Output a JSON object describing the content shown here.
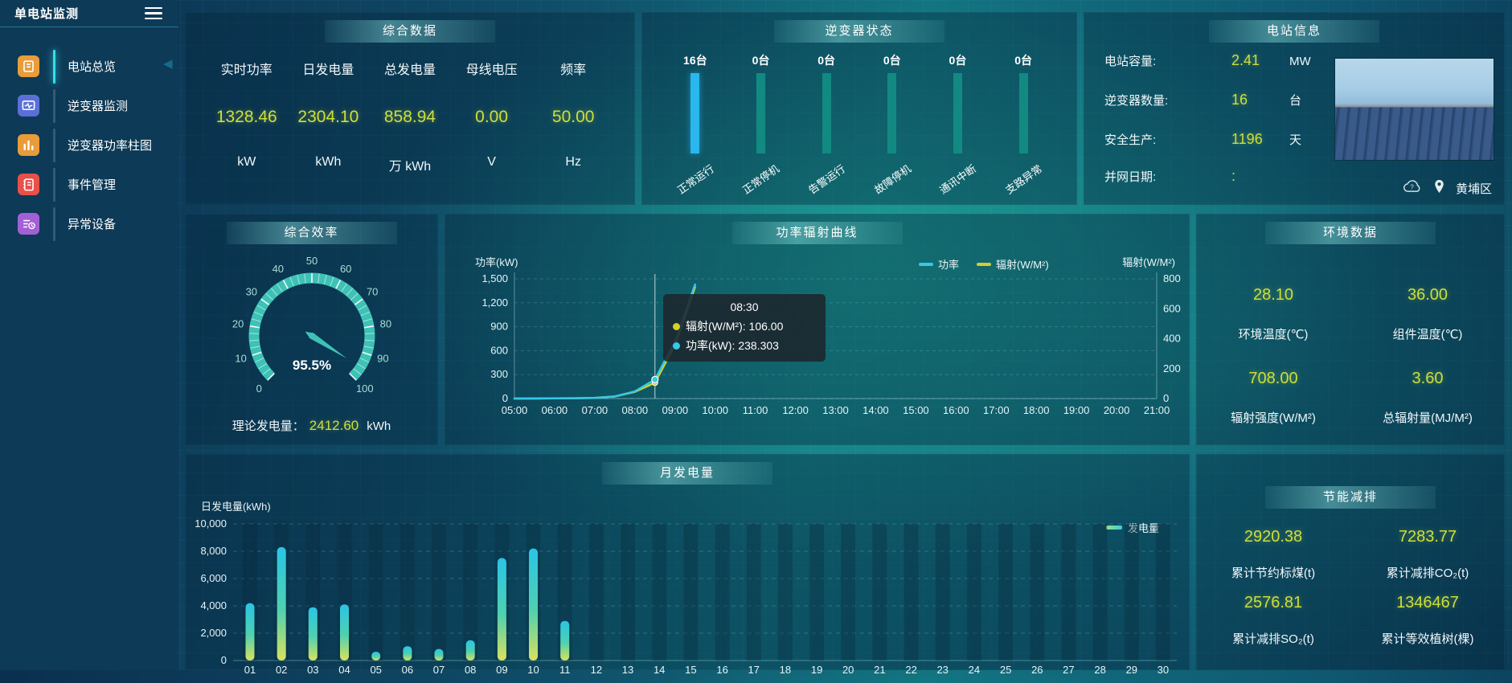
{
  "app": {
    "title": "单电站监测"
  },
  "colors": {
    "value_text": "#cddf3c",
    "power_line": "#35c8e8",
    "radiation_line": "#d4cf2a",
    "inverter_bar_highlight": "#29b7ee",
    "inverter_bar_normal": "#128a82",
    "gauge_arc": "#3ec2b6",
    "bar_gradient_bottom": "#d9e25c",
    "bar_gradient_mid": "#4fd0b0",
    "bar_gradient_top": "#29c5e6",
    "sidebar_active": "#35e0e8"
  },
  "sidebar": {
    "title": "单电站监测",
    "items": [
      {
        "label": "电站总览",
        "icon": "doc-icon",
        "color": "#e89c3a",
        "active": true
      },
      {
        "label": "逆变器监测",
        "icon": "monitor-icon",
        "color": "#5a6fd8",
        "active": false
      },
      {
        "label": "逆变器功率柱图",
        "icon": "barchart-icon",
        "color": "#e89c3a",
        "active": false
      },
      {
        "label": "事件管理",
        "icon": "notebook-icon",
        "color": "#e95049",
        "active": false
      },
      {
        "label": "异常设备",
        "icon": "device-list-icon",
        "color": "#a35fd6",
        "active": false
      }
    ]
  },
  "summary": {
    "title": "综合数据",
    "metrics": [
      {
        "label": "实时功率",
        "value": "1328.46",
        "unit": "kW"
      },
      {
        "label": "日发电量",
        "value": "2304.10",
        "unit": "kWh"
      },
      {
        "label": "总发电量",
        "value": "858.94",
        "unit": "万 kWh"
      },
      {
        "label": "母线电压",
        "value": "0.00",
        "unit": "V"
      },
      {
        "label": "频率",
        "value": "50.00",
        "unit": "Hz"
      }
    ]
  },
  "inverter_status": {
    "title": "逆变器状态",
    "unit_suffix": "台"
  },
  "station_info": {
    "title": "电站信息",
    "rows": [
      {
        "label": "电站容量:",
        "value": "2.41",
        "unit": "MW"
      },
      {
        "label": "逆变器数量:",
        "value": "16",
        "unit": "台"
      },
      {
        "label": "安全生产:",
        "value": "1196",
        "unit": "天"
      },
      {
        "label": "并网日期:",
        "value": ":",
        "unit": ""
      }
    ],
    "location": "黄埔区"
  },
  "efficiency": {
    "title": "综合效率",
    "footer_label": "理论发电量：",
    "footer_value": "2412.60",
    "footer_unit": "kWh"
  },
  "power_curve": {
    "title": "功率辐射曲线",
    "y_left_label": "功率(kW)",
    "y_right_label": "辐射(W/M²)",
    "legend_power": "功率",
    "legend_radiation": "辐射(W/M²)",
    "tooltip": {
      "time": "08:30",
      "radiation_text": "辐射(W/M²): 106.00",
      "power_text": "功率(kW): 238.303"
    }
  },
  "environment": {
    "title": "环境数据",
    "cells": [
      {
        "value": "28.10",
        "label": "环境温度(℃)"
      },
      {
        "value": "36.00",
        "label": "组件温度(℃)"
      },
      {
        "value": "708.00",
        "label": "辐射强度(W/M²)"
      },
      {
        "value": "3.60",
        "label": "总辐射量(MJ/M²)"
      }
    ]
  },
  "monthly": {
    "title": "月发电量",
    "y_label": "日发电量(kWh)",
    "legend": "发电量"
  },
  "saving": {
    "title": "节能减排",
    "cells": [
      {
        "value": "2920.38",
        "label": "累计节约标煤(t)"
      },
      {
        "value": "7283.77",
        "label": "累计减排CO₂(t)"
      },
      {
        "value": "2576.81",
        "label": "累计减排SO₂(t)"
      },
      {
        "value": "1346467",
        "label": "累计等效植树(棵)"
      }
    ]
  },
  "chart_data": [
    {
      "type": "bar",
      "title": "逆变器状态",
      "categories": [
        "正常运行",
        "正常停机",
        "告警运行",
        "故障停机",
        "通讯中断",
        "支路异常"
      ],
      "values": [
        16,
        0,
        0,
        0,
        0,
        0
      ],
      "unit": "台"
    },
    {
      "type": "gauge",
      "title": "综合效率",
      "value": 95.5,
      "min": 0,
      "max": 100,
      "display": "95.5%",
      "tick_labels": [
        "0",
        "10",
        "20",
        "30",
        "40",
        "50",
        "60",
        "70",
        "80",
        "90",
        "100"
      ]
    },
    {
      "type": "line",
      "title": "功率辐射曲线",
      "x": [
        "05:00",
        "05:30",
        "06:00",
        "06:30",
        "07:00",
        "07:30",
        "08:00",
        "08:30",
        "09:00",
        "09:30"
      ],
      "x_axis_ticks": [
        "05:00",
        "06:00",
        "07:00",
        "08:00",
        "09:00",
        "10:00",
        "11:00",
        "12:00",
        "13:00",
        "14:00",
        "15:00",
        "16:00",
        "17:00",
        "18:00",
        "19:00",
        "20:00",
        "21:00"
      ],
      "series": [
        {
          "name": "功率",
          "axis": "left",
          "values": [
            0,
            1,
            2,
            4,
            8,
            25,
            90,
            238.3,
            720,
            1430
          ]
        },
        {
          "name": "辐射(W/M²)",
          "axis": "right",
          "values": [
            0,
            0,
            1,
            2,
            5,
            14,
            45,
            106,
            360,
            745
          ]
        }
      ],
      "ylim_left": [
        0,
        1500
      ],
      "ylim_right": [
        0,
        800
      ],
      "highlight_x": "08:30",
      "grid": true,
      "legend_position": "top-right"
    },
    {
      "type": "bar",
      "title": "月发电量",
      "categories": [
        "01",
        "02",
        "03",
        "04",
        "05",
        "06",
        "07",
        "08",
        "09",
        "10",
        "11",
        "12",
        "13",
        "14",
        "15",
        "16",
        "17",
        "18",
        "19",
        "20",
        "21",
        "22",
        "23",
        "24",
        "25",
        "26",
        "27",
        "28",
        "29",
        "30"
      ],
      "values": [
        4200,
        8300,
        3900,
        4100,
        640,
        1050,
        850,
        1480,
        7500,
        8200,
        2900,
        0,
        0,
        0,
        0,
        0,
        0,
        0,
        0,
        0,
        0,
        0,
        0,
        0,
        0,
        0,
        0,
        0,
        0,
        0
      ],
      "ylim": [
        0,
        10000
      ],
      "legend": "发电量",
      "ylabel": "日发电量(kWh)"
    }
  ]
}
